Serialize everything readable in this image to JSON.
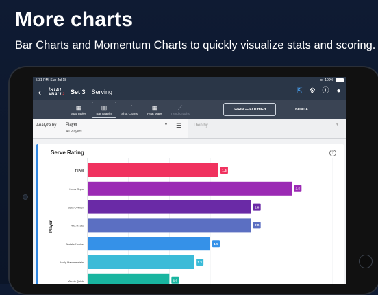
{
  "promo": {
    "title": "More charts",
    "subtitle": "Bar Charts and Momentum Charts to quickly visualize stats and scoring."
  },
  "status_bar": {
    "time": "5:31 PM",
    "date": "Sun Jul 18",
    "battery": "100%"
  },
  "nav": {
    "logo_line1": "iSTAT",
    "logo_line2": "VBALL",
    "logo_line2_accent": "2",
    "set_label": "Set 3",
    "mode_label": "Serving",
    "icons": [
      "back-chevron-icon",
      "share-icon",
      "gear-icon",
      "help-icon",
      "person-icon"
    ]
  },
  "toolbar": {
    "tools": [
      {
        "label": "Stat Tables",
        "icon": "▦",
        "state": "normal"
      },
      {
        "label": "Bar Graphs",
        "icon": "▥",
        "state": "active"
      },
      {
        "label": "Shot Charts",
        "icon": "⋰",
        "state": "normal"
      },
      {
        "label": "Heat Maps",
        "icon": "▦",
        "state": "normal"
      },
      {
        "label": "Trend Graphs",
        "icon": "⟋",
        "state": "disabled"
      }
    ],
    "team_selected": "SPRINGFIELD HIGH",
    "team_other": "BONITA"
  },
  "filters": {
    "analyze_label": "Analyze by",
    "analyze_value": "Player",
    "analyze_sub": "All Players",
    "then_label": "Then by"
  },
  "card": {
    "title": "Serve Rating"
  },
  "chart_data": {
    "type": "bar",
    "orientation": "horizontal",
    "ylabel": "Player",
    "categories": [
      "TEAM",
      "Ivana Oppo",
      "Sara O'Hitter",
      "Rita Roots",
      "Natalie Nectar",
      "Holly Hammerstein",
      "Alexis Quick"
    ],
    "values": [
      1.6,
      2.5,
      2.0,
      2.0,
      1.5,
      1.3,
      1.0
    ],
    "value_labels": [
      "1.6",
      "2.5",
      "2.0",
      "2.0",
      "1.5",
      "1.3",
      "1.0"
    ],
    "colors": [
      "#f0325f",
      "#9b2ab4",
      "#6a2aa6",
      "#5b6fc2",
      "#3591e8",
      "#3bbbd8",
      "#19b5a0"
    ],
    "xlim": [
      0,
      3.0
    ],
    "grid": true
  }
}
